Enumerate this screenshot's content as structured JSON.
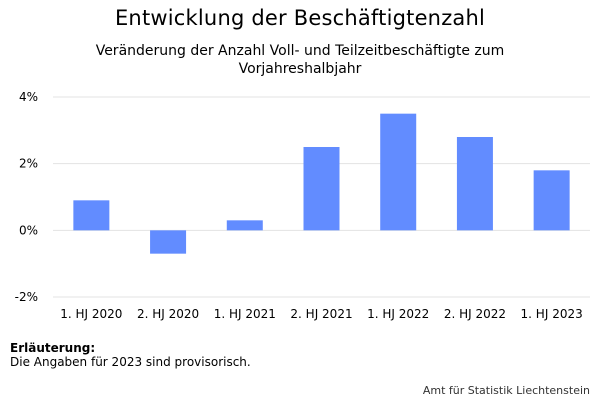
{
  "chart_data": {
    "type": "bar",
    "title": "Entwicklung der Beschäftigtenzahl",
    "subtitle": "Veränderung der Anzahl Voll- und Teilzeitbeschäftigte zum Vorjahreshalbjahr",
    "categories": [
      "1. HJ 2020",
      "2. HJ 2020",
      "1. HJ 2021",
      "2. HJ 2021",
      "1. HJ 2022",
      "2. HJ 2022",
      "1. HJ 2023"
    ],
    "values": [
      0.9,
      -0.7,
      0.3,
      2.5,
      3.5,
      2.8,
      1.8
    ],
    "ylim": [
      -2,
      4
    ],
    "yticks": [
      -2,
      0,
      2,
      4
    ],
    "ytick_labels": [
      "-2%",
      "0%",
      "2%",
      "4%"
    ],
    "bar_color": "#628cff",
    "grid": true
  },
  "note": {
    "title": "Erläuterung:",
    "text": "Die Angaben für 2023 sind provisorisch."
  },
  "source": "Amt für Statistik Liechtenstein"
}
